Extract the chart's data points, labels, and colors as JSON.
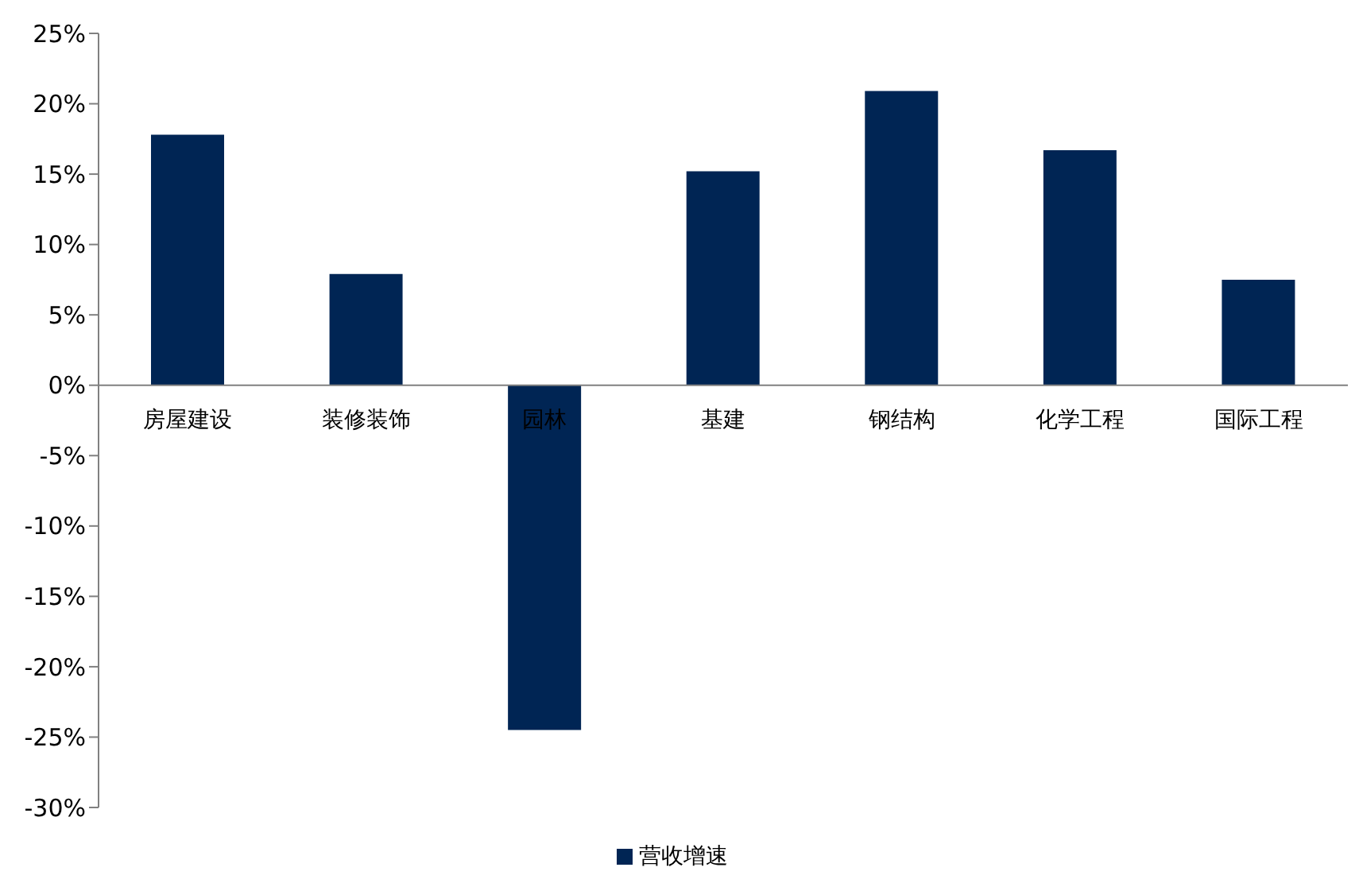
{
  "chart_data": {
    "type": "bar",
    "categories": [
      "房屋建设",
      "装修装饰",
      "园林",
      "基建",
      "钢结构",
      "化学工程",
      "国际工程"
    ],
    "series": [
      {
        "name": "营收增速",
        "color": "#002554",
        "values": [
          17.8,
          7.9,
          -24.5,
          15.2,
          20.9,
          16.7,
          7.5
        ]
      }
    ],
    "ylim": [
      -30,
      25
    ],
    "yticks": [
      {
        "value": -30,
        "label": "-30%"
      },
      {
        "value": -25,
        "label": "-25%"
      },
      {
        "value": -20,
        "label": "-20%"
      },
      {
        "value": -15,
        "label": "-15%"
      },
      {
        "value": -10,
        "label": "-10%"
      },
      {
        "value": -5,
        "label": "-5%"
      },
      {
        "value": 0,
        "label": "0%"
      },
      {
        "value": 5,
        "label": "5%"
      },
      {
        "value": 10,
        "label": "10%"
      },
      {
        "value": 15,
        "label": "15%"
      },
      {
        "value": 20,
        "label": "20%"
      },
      {
        "value": 25,
        "label": "25%"
      }
    ],
    "grid": false,
    "legend": "bottom"
  }
}
